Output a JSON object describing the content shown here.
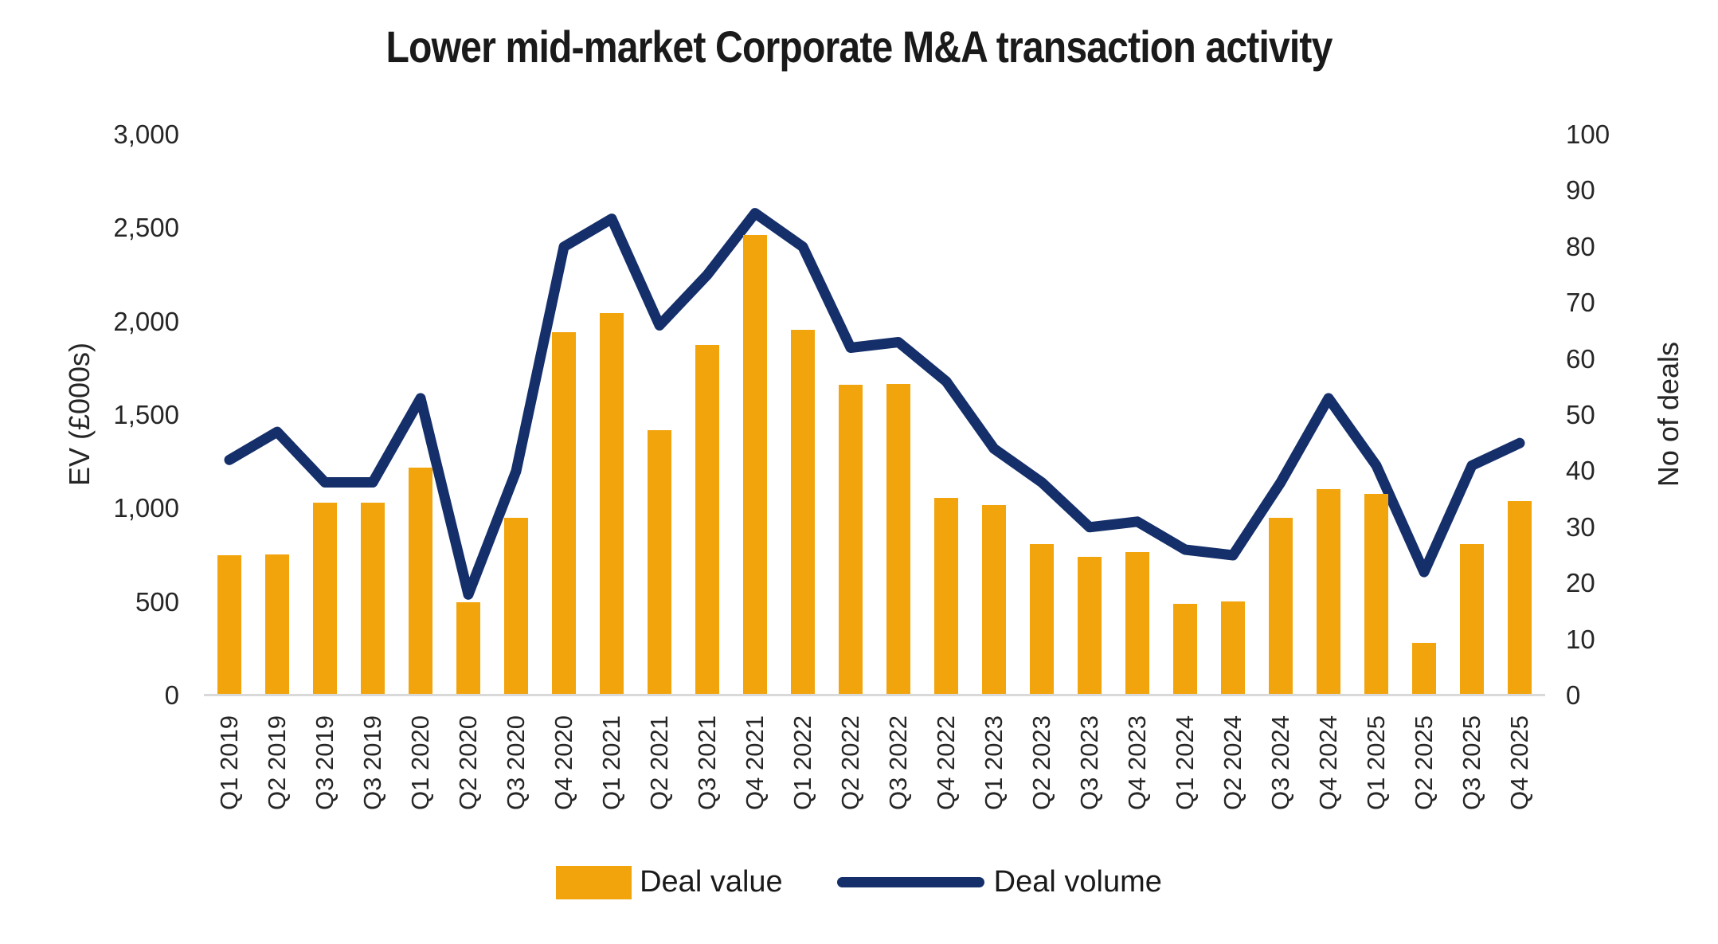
{
  "title": "Lower mid-market Corporate M&A transaction activity",
  "left_axis": {
    "title": "EV (£000s)",
    "ticks": [
      "3,000",
      "2,500",
      "2,000",
      "1,500",
      "1,000",
      "500",
      "0"
    ]
  },
  "right_axis": {
    "title": "No of deals",
    "ticks": [
      "100",
      "90",
      "80",
      "70",
      "60",
      "50",
      "40",
      "30",
      "20",
      "10",
      "0"
    ]
  },
  "legend": [
    {
      "label": "Deal value",
      "type": "bar",
      "color": "#F2A40D"
    },
    {
      "label": "Deal volume",
      "type": "line",
      "color": "#152F6B"
    }
  ],
  "colors": {
    "bar": "#F2A40D",
    "line": "#152F6B",
    "axis_line": "#D9D9D9",
    "text": "#262626",
    "title": "#1A1A1A"
  },
  "chart_data": {
    "type": "bar+line",
    "title": "Lower mid-market Corporate M&A transaction activity",
    "categories": [
      "Q1 2019",
      "Q2 2019",
      "Q3 2019",
      "Q3 2019",
      "Q1 2020",
      "Q2 2020",
      "Q3 2020",
      "Q4 2020",
      "Q1 2021",
      "Q2 2021",
      "Q3 2021",
      "Q4 2021",
      "Q1 2022",
      "Q2 2022",
      "Q3 2022",
      "Q4 2022",
      "Q1 2023",
      "Q2 2023",
      "Q3 2023",
      "Q4 2023",
      "Q1 2024",
      "Q2 2024",
      "Q3 2024",
      "Q4 2024",
      "Q1 2025",
      "Q2 2025",
      "Q3 2025",
      "Q4 2025"
    ],
    "series": [
      {
        "name": "Deal value",
        "type": "bar",
        "axis": "left",
        "ylabel": "EV (£000s)",
        "color": "#F2A40D",
        "values": [
          750,
          755,
          1030,
          1030,
          1220,
          500,
          950,
          1945,
          2045,
          1420,
          1875,
          2465,
          1955,
          1660,
          1665,
          1055,
          1020,
          810,
          740,
          765,
          490,
          505,
          950,
          1105,
          1080,
          280,
          810,
          1040
        ]
      },
      {
        "name": "Deal volume",
        "type": "line",
        "axis": "right",
        "ylabel": "No of deals",
        "color": "#152F6B",
        "values": [
          42,
          47,
          38,
          38,
          53,
          18,
          40,
          80,
          85,
          66,
          75,
          86,
          80,
          62,
          63,
          56,
          44,
          38,
          30,
          31,
          26,
          25,
          38,
          53,
          41,
          22,
          41,
          45
        ]
      }
    ],
    "left_ylim": [
      0,
      3000
    ],
    "right_ylim": [
      0,
      100
    ],
    "left_tick_step": 500,
    "right_tick_step": 10,
    "grid": false,
    "legend_position": "bottom"
  }
}
